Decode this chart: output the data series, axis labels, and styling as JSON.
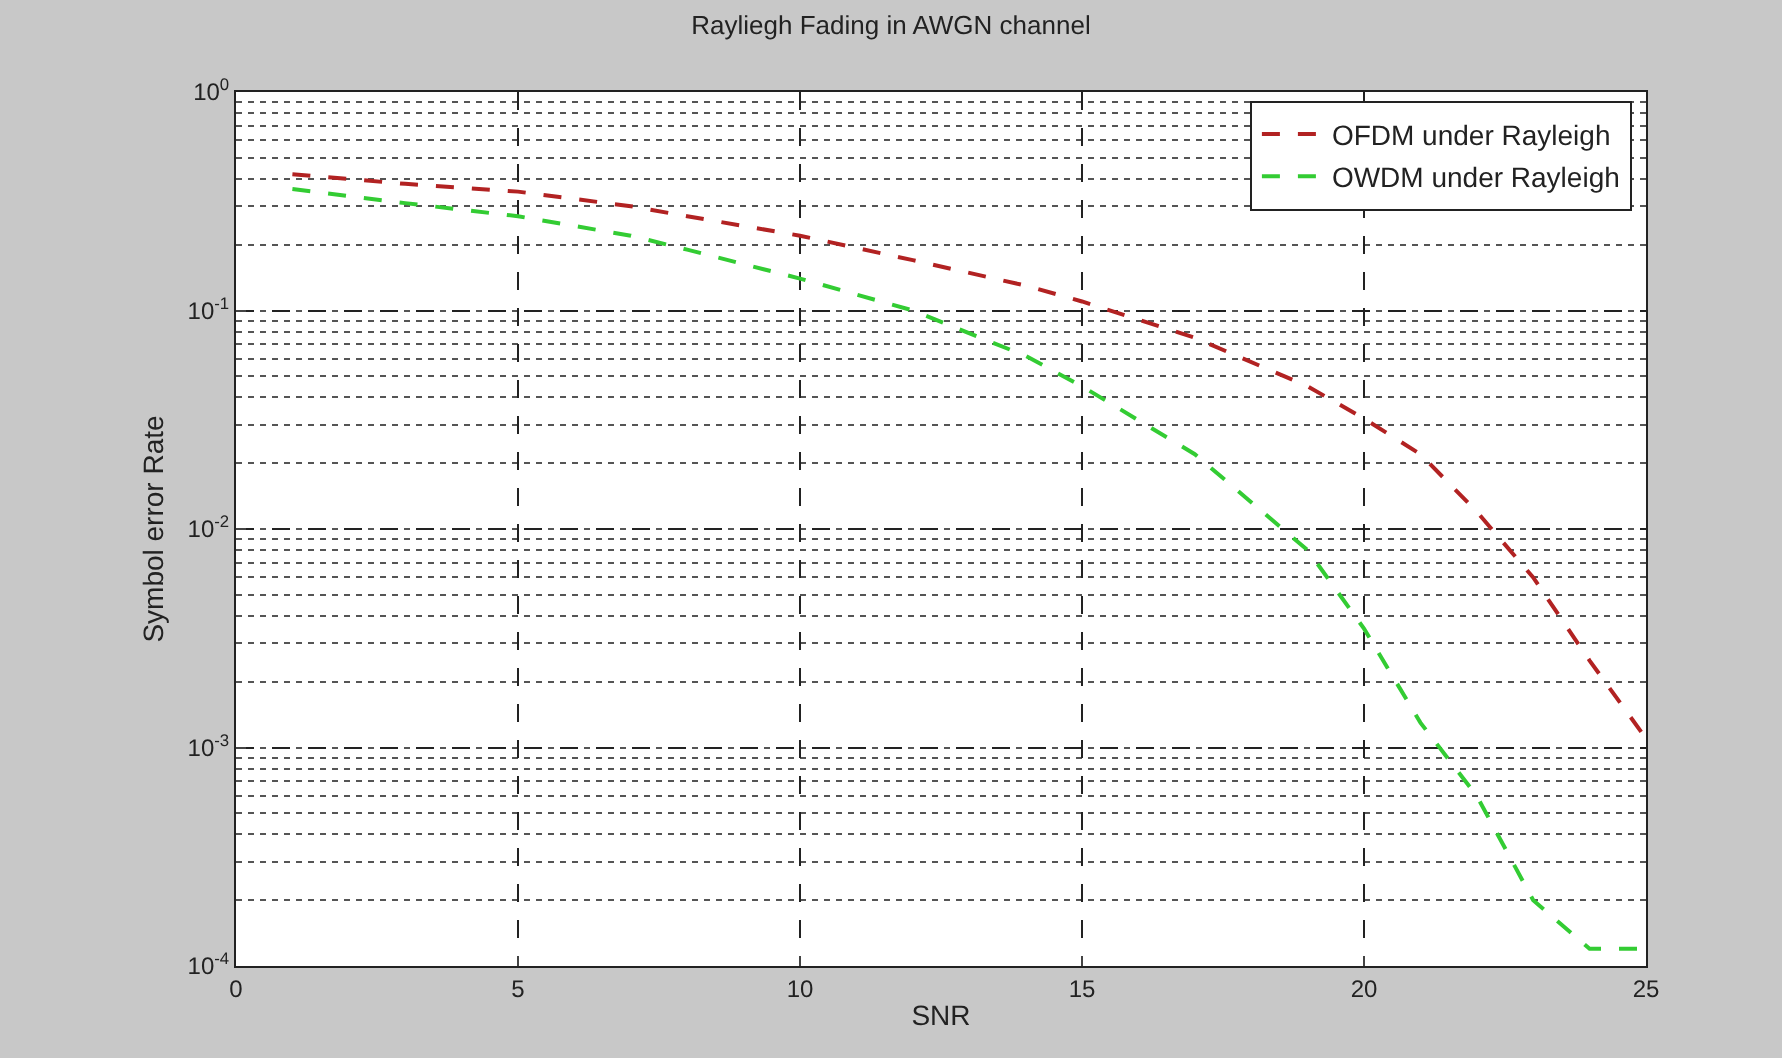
{
  "chart_data": {
    "type": "line",
    "title": "Rayliegh Fading in AWGN channel",
    "xlabel": "SNR",
    "ylabel": "Symbol error Rate",
    "x": [
      1,
      3,
      5,
      7,
      8,
      10,
      12,
      14,
      15,
      17,
      19,
      20,
      21,
      22,
      23,
      24,
      25
    ],
    "series": [
      {
        "name": "OFDM under Rayleigh",
        "color": "#b22222",
        "values": [
          0.42,
          0.38,
          0.35,
          0.3,
          0.27,
          0.22,
          0.17,
          0.13,
          0.11,
          0.075,
          0.045,
          0.032,
          0.022,
          0.012,
          0.006,
          0.0025,
          0.0011
        ]
      },
      {
        "name": "OWDM under Rayleigh",
        "color": "#33cc33",
        "values": [
          0.36,
          0.31,
          0.27,
          0.22,
          0.19,
          0.14,
          0.1,
          0.062,
          0.045,
          0.022,
          0.008,
          0.0035,
          0.0013,
          0.0006,
          0.0002,
          0.00012,
          0.00012
        ]
      }
    ],
    "xlim": [
      0,
      25
    ],
    "xticks": [
      0,
      5,
      10,
      15,
      20,
      25
    ],
    "ylim": [
      0.0001,
      1
    ],
    "yticks": [
      {
        "value": 0.0001,
        "label": "10$^{-4}$"
      },
      {
        "value": 0.001,
        "label": "10$^{-3}$"
      },
      {
        "value": 0.01,
        "label": "10$^{-2}$"
      },
      {
        "value": 0.1,
        "label": "10$^{-1}$"
      },
      {
        "value": 1,
        "label": "10$^{0}$"
      }
    ],
    "log": "y",
    "grid": true,
    "legend": "top right",
    "line_style": "dashed",
    "marker": "none"
  }
}
